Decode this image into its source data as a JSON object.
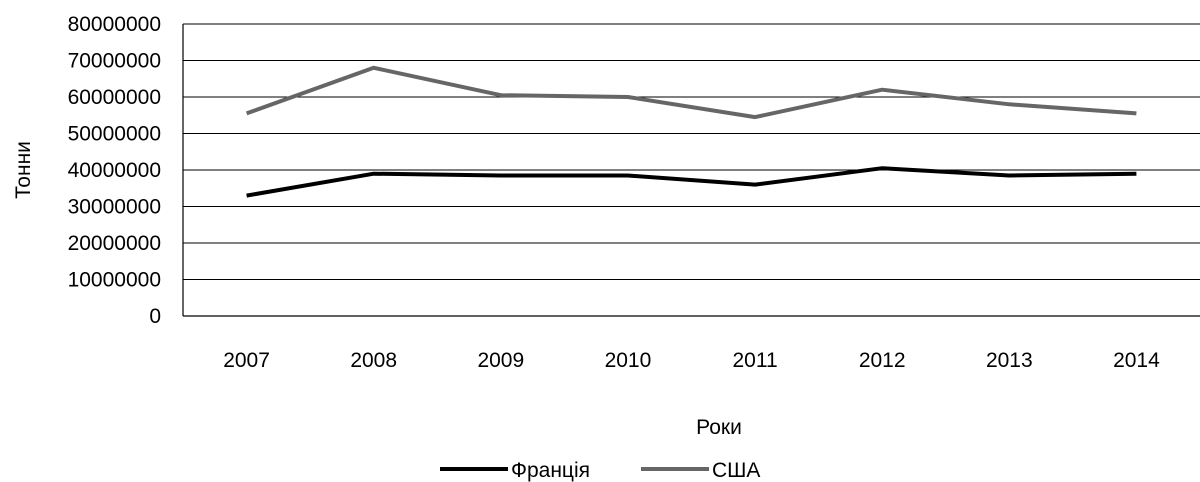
{
  "chart_data": {
    "type": "line",
    "title": "",
    "xlabel": "Роки",
    "ylabel": "Тонни",
    "categories": [
      "2007",
      "2008",
      "2009",
      "2010",
      "2011",
      "2012",
      "2013",
      "2014"
    ],
    "ylim": [
      0,
      80000000
    ],
    "yticks": [
      "0",
      "10000000",
      "20000000",
      "30000000",
      "40000000",
      "50000000",
      "60000000",
      "70000000",
      "80000000"
    ],
    "grid": true,
    "legend": "bottom-center",
    "series": [
      {
        "name": "Франція",
        "color": "#000000",
        "values": [
          33000000,
          39000000,
          38500000,
          38500000,
          36000000,
          40500000,
          38500000,
          39000000
        ]
      },
      {
        "name": "США",
        "color": "#666666",
        "values": [
          55500000,
          68000000,
          60500000,
          60000000,
          54500000,
          62000000,
          58000000,
          55500000
        ]
      }
    ]
  }
}
